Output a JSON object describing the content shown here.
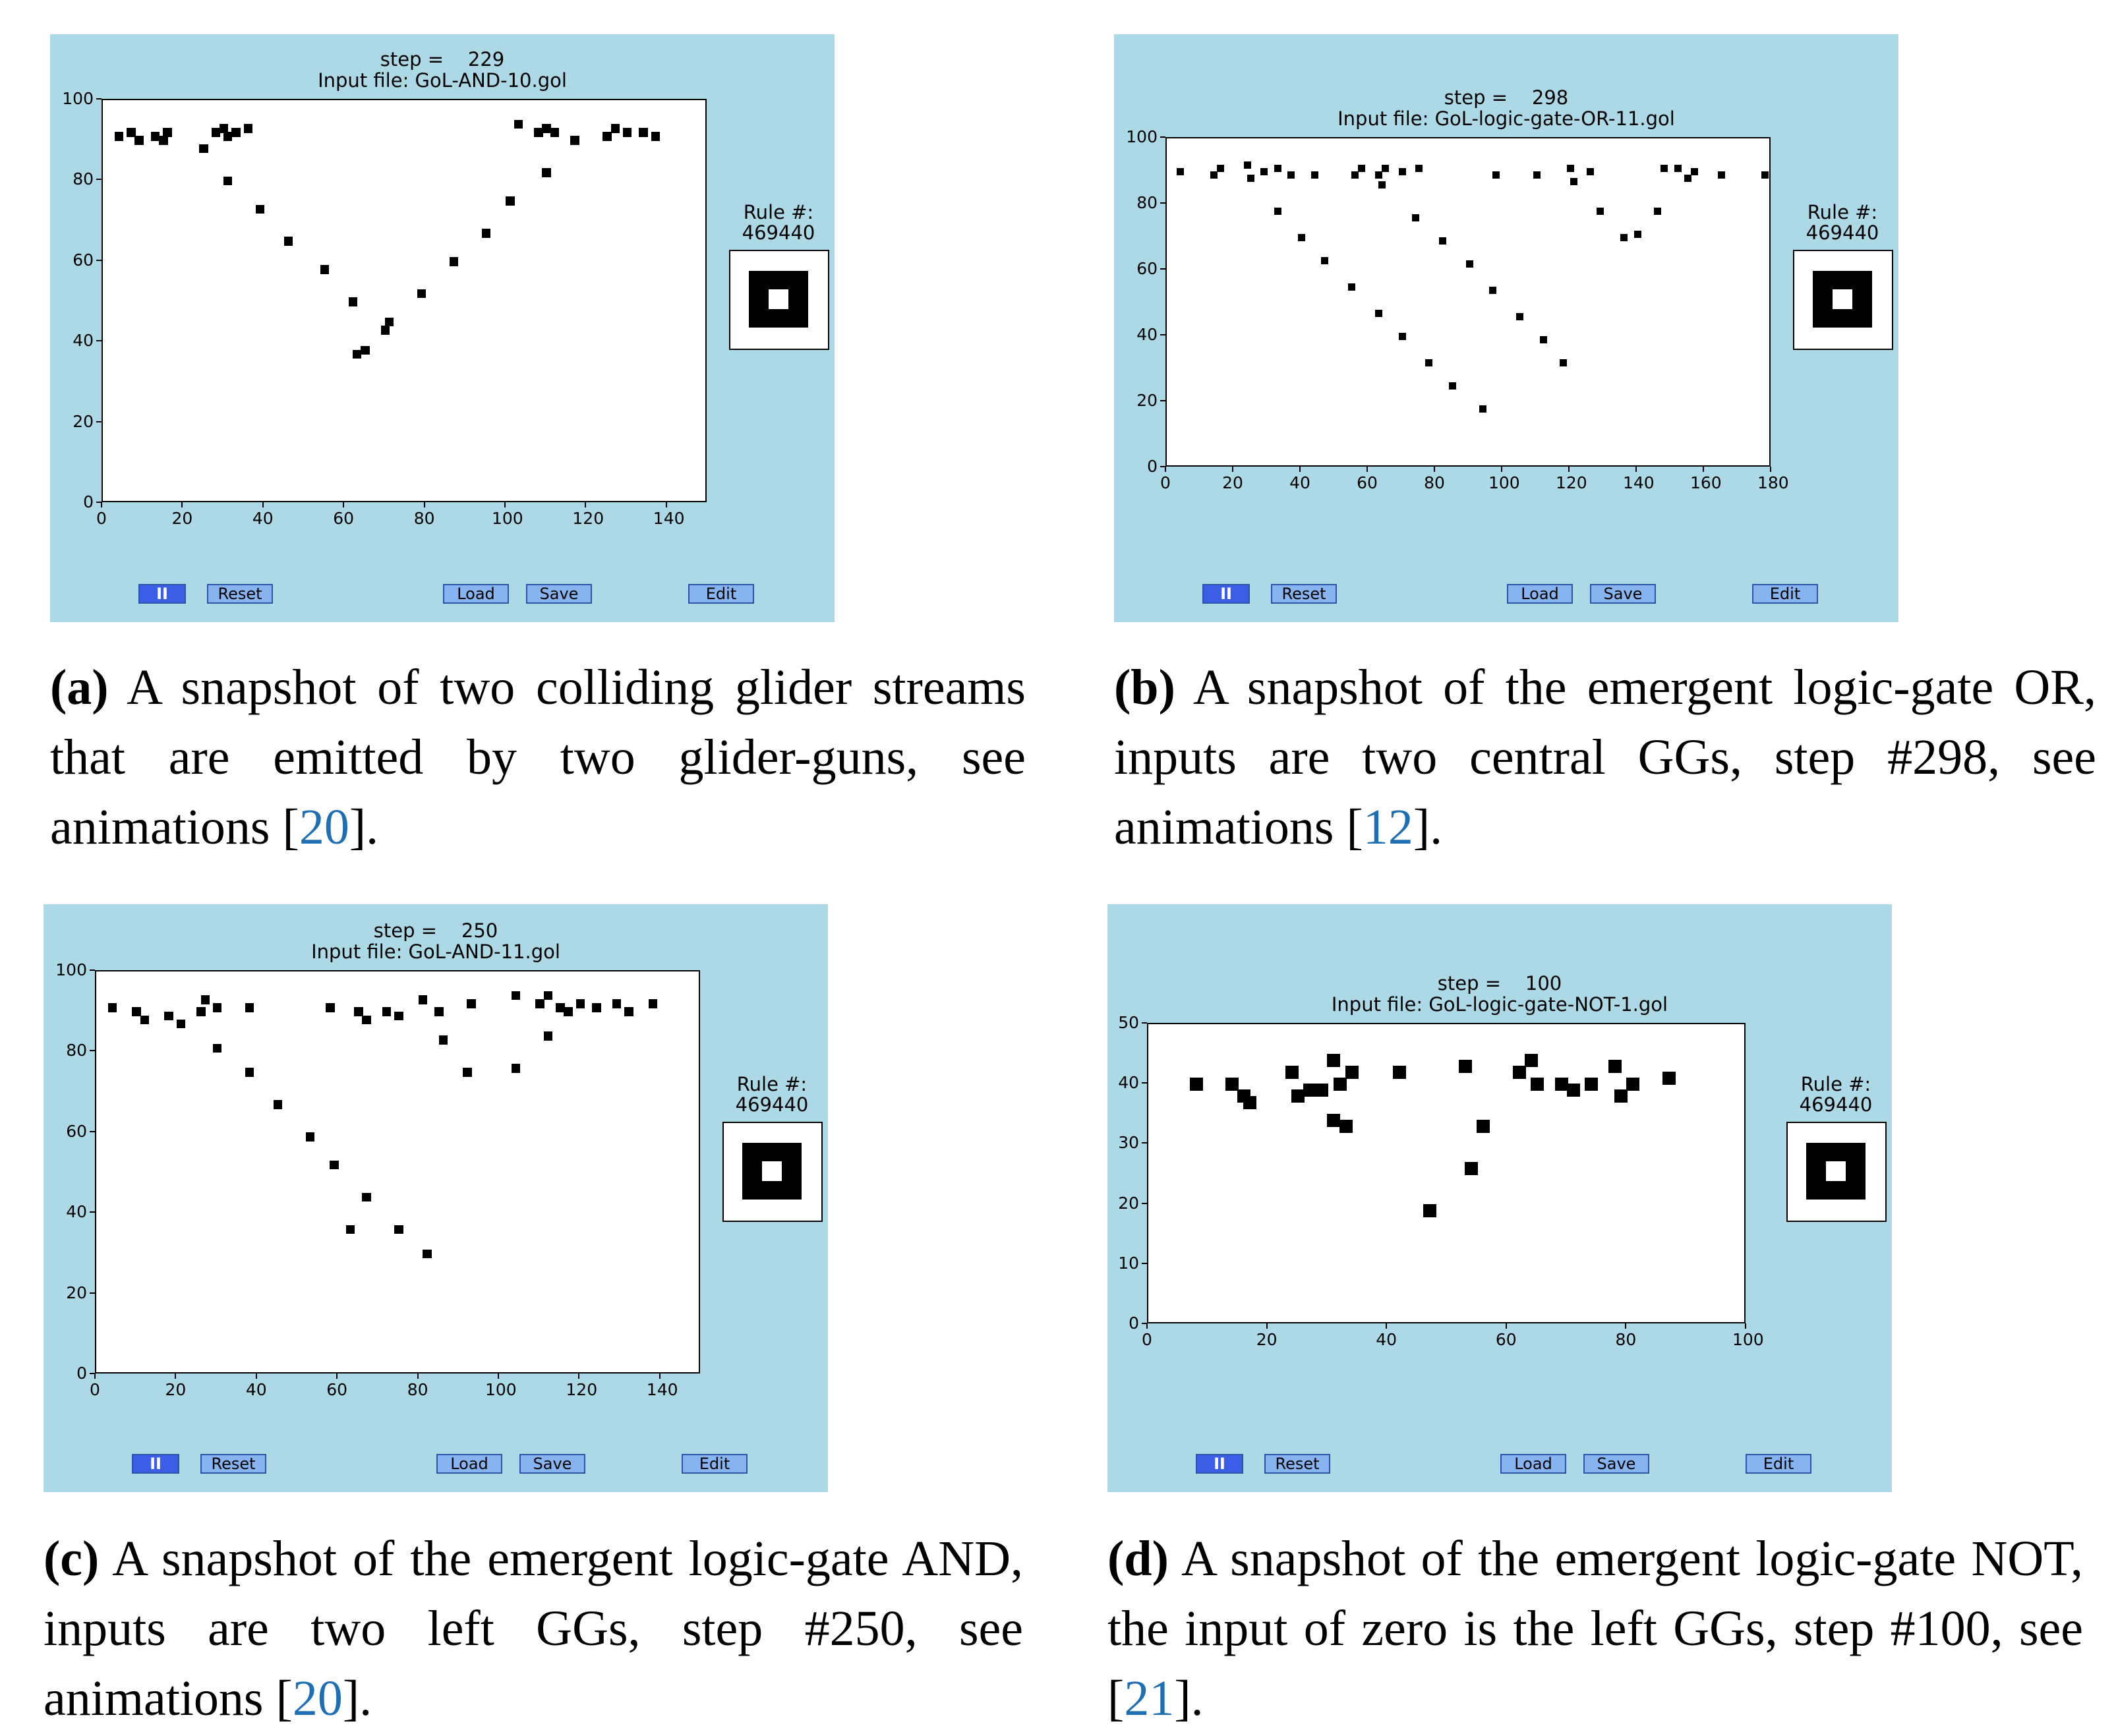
{
  "panels": [
    {
      "id": "a",
      "step_label": "step =",
      "step_value": "229",
      "input_file": "Input file: GoL-AND-10.gol",
      "rule_label": "Rule #:",
      "rule_value": "469440",
      "x_ticks": [
        "0",
        "20",
        "40",
        "60",
        "80",
        "100",
        "120",
        "140"
      ],
      "y_ticks": [
        "0",
        "20",
        "40",
        "60",
        "80",
        "100"
      ],
      "xlim": [
        0,
        150
      ],
      "ylim": [
        0,
        100
      ],
      "buttons": {
        "play": "II",
        "reset": "Reset",
        "load": "Load",
        "save": "Save",
        "edit": "Edit"
      },
      "caption_label": "(a)",
      "caption_text": "A snapshot of two colliding glider streams that are emitted by two glider-guns, see animations [",
      "caption_ref": "20",
      "caption_end": "]."
    },
    {
      "id": "b",
      "step_label": "step =",
      "step_value": "298",
      "input_file": "Input file: GoL-logic-gate-OR-11.gol",
      "rule_label": "Rule #:",
      "rule_value": "469440",
      "x_ticks": [
        "0",
        "20",
        "40",
        "60",
        "80",
        "100",
        "120",
        "140",
        "160",
        "180"
      ],
      "y_ticks": [
        "0",
        "20",
        "40",
        "60",
        "80",
        "100"
      ],
      "xlim": [
        0,
        180
      ],
      "ylim": [
        0,
        100
      ],
      "buttons": {
        "play": "II",
        "reset": "Reset",
        "load": "Load",
        "save": "Save",
        "edit": "Edit"
      },
      "caption_label": "(b)",
      "caption_text": "A snapshot of the emergent logic-gate OR, inputs are two central GGs, step #298, see animations [",
      "caption_ref": "12",
      "caption_end": "]."
    },
    {
      "id": "c",
      "step_label": "step =",
      "step_value": "250",
      "input_file": "Input file: GoL-AND-11.gol",
      "rule_label": "Rule #:",
      "rule_value": "469440",
      "x_ticks": [
        "0",
        "20",
        "40",
        "60",
        "80",
        "100",
        "120",
        "140"
      ],
      "y_ticks": [
        "0",
        "20",
        "40",
        "60",
        "80",
        "100"
      ],
      "xlim": [
        0,
        150
      ],
      "ylim": [
        0,
        100
      ],
      "buttons": {
        "play": "II",
        "reset": "Reset",
        "load": "Load",
        "save": "Save",
        "edit": "Edit"
      },
      "caption_label": "(c)",
      "caption_text": "A snapshot of the emergent logic-gate AND, inputs are two left GGs, step #250, see animations [",
      "caption_ref": "20",
      "caption_end": "]."
    },
    {
      "id": "d",
      "step_label": "step =",
      "step_value": "100",
      "input_file": "Input file: GoL-logic-gate-NOT-1.gol",
      "rule_label": "Rule #:",
      "rule_value": "469440",
      "x_ticks": [
        "0",
        "20",
        "40",
        "60",
        "80",
        "100"
      ],
      "y_ticks": [
        "0",
        "10",
        "20",
        "30",
        "40",
        "50"
      ],
      "xlim": [
        0,
        100
      ],
      "ylim": [
        0,
        50
      ],
      "buttons": {
        "play": "II",
        "reset": "Reset",
        "load": "Load",
        "save": "Save",
        "edit": "Edit"
      },
      "caption_label": "(d)",
      "caption_text": "A snapshot of the emergent logic-gate NOT, the input of zero is the left GGs, step #100, see [",
      "caption_ref": "21",
      "caption_end": "]."
    }
  ],
  "cells": {
    "a": [
      [
        4,
        91
      ],
      [
        7,
        92
      ],
      [
        9,
        90
      ],
      [
        13,
        91
      ],
      [
        15,
        90
      ],
      [
        16,
        92
      ],
      [
        25,
        88
      ],
      [
        28,
        92
      ],
      [
        30,
        93
      ],
      [
        31,
        91
      ],
      [
        33,
        92
      ],
      [
        36,
        93
      ],
      [
        31,
        80
      ],
      [
        39,
        73
      ],
      [
        46,
        65
      ],
      [
        55,
        58
      ],
      [
        62,
        50
      ],
      [
        63,
        37
      ],
      [
        65,
        38
      ],
      [
        70,
        43
      ],
      [
        71,
        45
      ],
      [
        79,
        52
      ],
      [
        87,
        60
      ],
      [
        95,
        67
      ],
      [
        101,
        75
      ],
      [
        103,
        94
      ],
      [
        108,
        92
      ],
      [
        110,
        93
      ],
      [
        112,
        92
      ],
      [
        110,
        82
      ],
      [
        117,
        90
      ],
      [
        125,
        91
      ],
      [
        127,
        93
      ],
      [
        130,
        92
      ],
      [
        134,
        92
      ],
      [
        137,
        91
      ]
    ],
    "b": [
      [
        4,
        90
      ],
      [
        14,
        89
      ],
      [
        16,
        91
      ],
      [
        24,
        92
      ],
      [
        25,
        88
      ],
      [
        29,
        90
      ],
      [
        33,
        91
      ],
      [
        37,
        89
      ],
      [
        44,
        89
      ],
      [
        56,
        89
      ],
      [
        58,
        91
      ],
      [
        63,
        89
      ],
      [
        65,
        91
      ],
      [
        64,
        86
      ],
      [
        70,
        90
      ],
      [
        75,
        91
      ],
      [
        33,
        78
      ],
      [
        40,
        70
      ],
      [
        47,
        63
      ],
      [
        55,
        55
      ],
      [
        63,
        47
      ],
      [
        70,
        40
      ],
      [
        78,
        32
      ],
      [
        85,
        25
      ],
      [
        94,
        18
      ],
      [
        74,
        76
      ],
      [
        82,
        69
      ],
      [
        90,
        62
      ],
      [
        97,
        54
      ],
      [
        105,
        46
      ],
      [
        112,
        39
      ],
      [
        118,
        32
      ],
      [
        98,
        89
      ],
      [
        110,
        89
      ],
      [
        120,
        91
      ],
      [
        121,
        87
      ],
      [
        126,
        90
      ],
      [
        129,
        78
      ],
      [
        136,
        70
      ],
      [
        140,
        71
      ],
      [
        146,
        78
      ],
      [
        148,
        91
      ],
      [
        152,
        91
      ],
      [
        155,
        88
      ],
      [
        157,
        90
      ],
      [
        165,
        89
      ],
      [
        178,
        89
      ]
    ],
    "c": [
      [
        4,
        91
      ],
      [
        10,
        90
      ],
      [
        12,
        88
      ],
      [
        18,
        89
      ],
      [
        21,
        87
      ],
      [
        26,
        90
      ],
      [
        27,
        93
      ],
      [
        30,
        91
      ],
      [
        38,
        91
      ],
      [
        30,
        81
      ],
      [
        38,
        75
      ],
      [
        45,
        67
      ],
      [
        53,
        59
      ],
      [
        59,
        52
      ],
      [
        67,
        44
      ],
      [
        63,
        36
      ],
      [
        75,
        36
      ],
      [
        82,
        30
      ],
      [
        58,
        91
      ],
      [
        65,
        90
      ],
      [
        67,
        88
      ],
      [
        72,
        90
      ],
      [
        75,
        89
      ],
      [
        81,
        93
      ],
      [
        85,
        90
      ],
      [
        93,
        92
      ],
      [
        86,
        83
      ],
      [
        92,
        75
      ],
      [
        104,
        76
      ],
      [
        104,
        94
      ],
      [
        110,
        92
      ],
      [
        112,
        94
      ],
      [
        115,
        91
      ],
      [
        117,
        90
      ],
      [
        120,
        92
      ],
      [
        112,
        84
      ],
      [
        124,
        91
      ],
      [
        129,
        92
      ],
      [
        132,
        90
      ],
      [
        138,
        92
      ]
    ],
    "d": [
      [
        8,
        40
      ],
      [
        14,
        40
      ],
      [
        16,
        38
      ],
      [
        17,
        37
      ],
      [
        24,
        42
      ],
      [
        25,
        38
      ],
      [
        27,
        39
      ],
      [
        29,
        39
      ],
      [
        31,
        44
      ],
      [
        32,
        40
      ],
      [
        34,
        42
      ],
      [
        31,
        34
      ],
      [
        33,
        33
      ],
      [
        42,
        42
      ],
      [
        47,
        19
      ],
      [
        53,
        43
      ],
      [
        54,
        26
      ],
      [
        56,
        33
      ],
      [
        62,
        42
      ],
      [
        64,
        44
      ],
      [
        65,
        40
      ],
      [
        69,
        40
      ],
      [
        71,
        39
      ],
      [
        74,
        40
      ],
      [
        78,
        43
      ],
      [
        79,
        38
      ],
      [
        81,
        40
      ],
      [
        87,
        41
      ]
    ]
  }
}
